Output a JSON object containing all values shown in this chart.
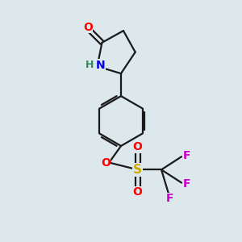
{
  "background_color": "#dce8ec",
  "bond_color": "#1a1a1a",
  "atom_colors": {
    "O": "#ff0000",
    "N": "#0000ee",
    "H": "#2e8b57",
    "S": "#ccaa00",
    "F": "#cc00cc"
  },
  "bond_width": 1.6,
  "figsize": [
    3.0,
    3.0
  ],
  "dpi": 100
}
